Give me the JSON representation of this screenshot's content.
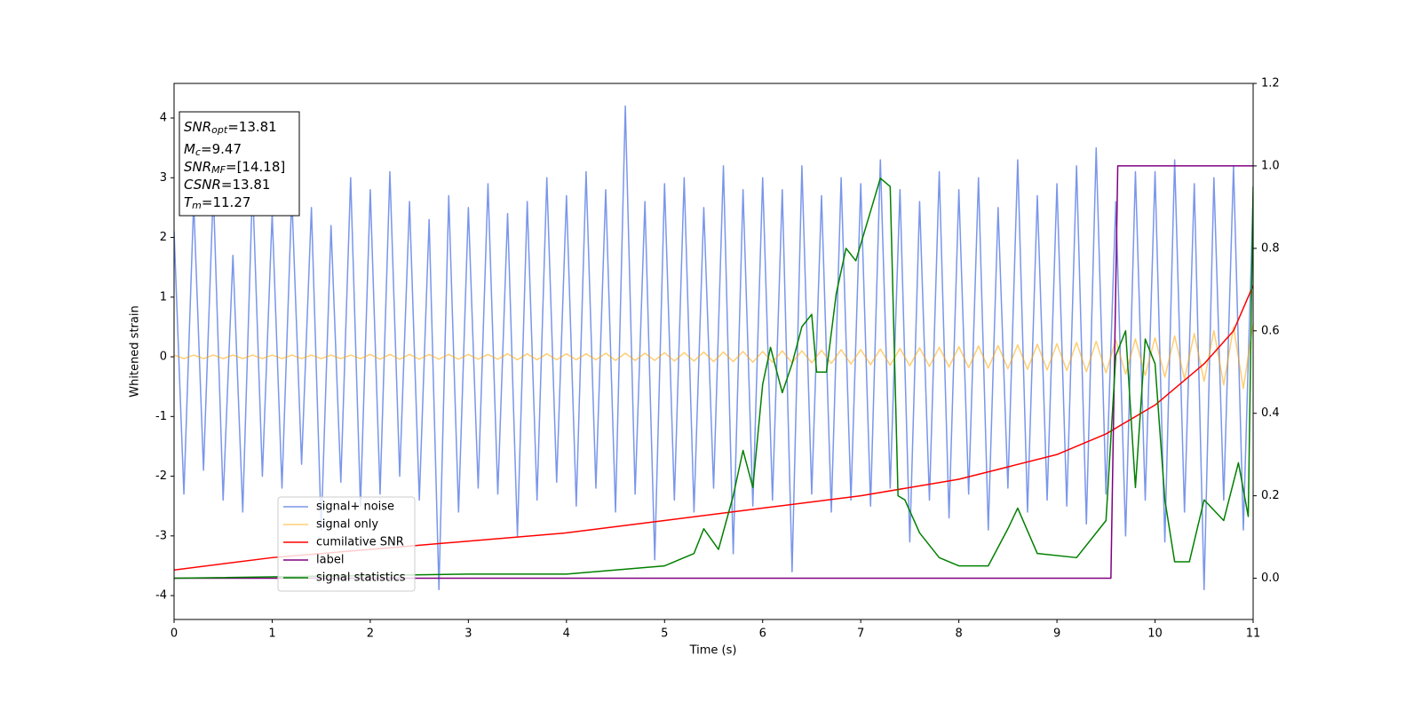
{
  "chart_data": {
    "type": "line",
    "xlabel": "Time (s)",
    "ylabel": "Whitened strain",
    "xlim": [
      0,
      11
    ],
    "ylim": [
      -4.4,
      4.58
    ],
    "y2lim": [
      -0.1,
      1.2
    ],
    "xticks": [
      0,
      1,
      2,
      3,
      4,
      5,
      6,
      7,
      8,
      9,
      10,
      11
    ],
    "yticks": [
      -4,
      -3,
      -2,
      -1,
      0,
      1,
      2,
      3,
      4
    ],
    "y2ticks": [
      {
        "value": 0,
        "label": "0.0"
      },
      0.2,
      0.4,
      0.6,
      0.8,
      {
        "value": 1,
        "label": "1.0"
      },
      1.2
    ],
    "x": [
      0,
      0.1,
      0.2,
      0.3,
      0.4,
      0.5,
      0.6,
      0.7,
      0.8,
      0.9,
      1,
      1.1,
      1.2,
      1.3,
      1.4,
      1.5,
      1.6,
      1.7,
      1.8,
      1.9,
      2,
      2.1,
      2.2,
      2.3,
      2.4,
      2.5,
      2.6,
      2.7,
      2.8,
      2.9,
      3,
      3.1,
      3.2,
      3.3,
      3.4,
      3.5,
      3.6,
      3.7,
      3.8,
      3.9,
      4,
      4.1,
      4.2,
      4.3,
      4.4,
      4.5,
      4.6,
      4.7,
      4.8,
      4.9,
      5,
      5.1,
      5.2,
      5.3,
      5.4,
      5.5,
      5.6,
      5.7,
      5.8,
      5.9,
      6,
      6.1,
      6.2,
      6.3,
      6.4,
      6.5,
      6.6,
      6.7,
      6.8,
      6.9,
      7,
      7.1,
      7.2,
      7.3,
      7.4,
      7.5,
      7.6,
      7.7,
      7.8,
      7.9,
      8,
      8.1,
      8.2,
      8.3,
      8.4,
      8.5,
      8.6,
      8.7,
      8.8,
      8.9,
      9,
      9.1,
      9.2,
      9.3,
      9.4,
      9.5,
      9.6,
      9.7,
      9.8,
      9.9,
      10,
      10.1,
      10.2,
      10.3,
      10.4,
      10.5,
      10.6,
      10.7,
      10.8,
      10.9,
      11
    ],
    "series": [
      {
        "name": "signal+ noise",
        "color": "#4169e1",
        "alpha": 0.7,
        "values": [
          2.1,
          -2.3,
          2.6,
          -1.9,
          2.8,
          -2.4,
          1.7,
          -2.6,
          2.9,
          -2.0,
          2.4,
          -2.2,
          2.7,
          -1.8,
          2.5,
          -2.9,
          2.2,
          -2.1,
          3.0,
          -2.5,
          2.8,
          -2.3,
          3.1,
          -2.0,
          2.6,
          -2.4,
          2.3,
          -3.9,
          2.7,
          -2.6,
          2.5,
          -2.2,
          2.9,
          -2.3,
          2.4,
          -3.0,
          2.6,
          -2.4,
          3.0,
          -2.1,
          2.7,
          -2.5,
          3.1,
          -2.2,
          2.8,
          -2.6,
          4.2,
          -2.3,
          2.6,
          -3.4,
          2.9,
          -2.4,
          3.0,
          -2.6,
          2.5,
          -2.2,
          3.2,
          -3.3,
          2.8,
          -2.5,
          3.0,
          -2.4,
          2.8,
          -3.6,
          3.2,
          -2.3,
          2.7,
          -2.6,
          3.0,
          -2.4,
          2.9,
          -2.5,
          3.3,
          -2.2,
          2.8,
          -3.1,
          2.6,
          -2.4,
          3.1,
          -2.7,
          2.8,
          -2.3,
          3.0,
          -2.9,
          2.5,
          -2.2,
          3.3,
          -2.6,
          2.7,
          -2.4,
          2.9,
          -2.5,
          3.2,
          -2.8,
          3.5,
          -2.3,
          2.6,
          -3.0,
          3.1,
          -2.4,
          3.1,
          -3.1,
          3.3,
          -2.6,
          2.9,
          -3.9,
          3.0,
          -2.4,
          3.2,
          -2.9,
          2.7
        ]
      },
      {
        "name": "signal only",
        "color": "#ffa500",
        "alpha": 0.55,
        "values": [
          0.03,
          -0.03,
          0.03,
          -0.03,
          0.03,
          -0.03,
          0.03,
          -0.03,
          0.03,
          -0.03,
          0.03,
          -0.03,
          0.03,
          -0.03,
          0.03,
          -0.03,
          0.03,
          -0.03,
          0.03,
          -0.03,
          0.04,
          -0.04,
          0.04,
          -0.04,
          0.04,
          -0.04,
          0.04,
          -0.04,
          0.04,
          -0.04,
          0.04,
          -0.04,
          0.04,
          -0.04,
          0.05,
          -0.05,
          0.05,
          -0.05,
          0.05,
          -0.05,
          0.05,
          -0.05,
          0.05,
          -0.05,
          0.06,
          -0.06,
          0.06,
          -0.06,
          0.06,
          -0.06,
          0.07,
          -0.07,
          0.07,
          -0.07,
          0.08,
          -0.08,
          0.08,
          -0.08,
          0.09,
          -0.09,
          0.09,
          -0.09,
          0.1,
          -0.1,
          0.1,
          -0.1,
          0.11,
          -0.11,
          0.12,
          -0.12,
          0.12,
          -0.13,
          0.13,
          -0.14,
          0.14,
          -0.15,
          0.15,
          -0.16,
          0.16,
          -0.17,
          0.17,
          -0.18,
          0.18,
          -0.19,
          0.19,
          -0.2,
          0.2,
          -0.21,
          0.21,
          -0.22,
          0.22,
          -0.23,
          0.24,
          -0.25,
          0.26,
          -0.27,
          0.28,
          -0.29,
          0.3,
          -0.31,
          0.32,
          -0.34,
          0.35,
          -0.37,
          0.39,
          -0.41,
          0.44,
          -0.47,
          0.5,
          -0.53,
          0.56
        ]
      },
      {
        "name": "cumilative SNR",
        "color": "#ff0000",
        "axis": "y2",
        "x": [
          0,
          1,
          2,
          3,
          4,
          5,
          6,
          7,
          8,
          8.5,
          9,
          9.5,
          10,
          10.5,
          10.8,
          11
        ],
        "values": [
          0.02,
          0.05,
          0.07,
          0.09,
          0.11,
          0.14,
          0.17,
          0.2,
          0.24,
          0.27,
          0.3,
          0.35,
          0.42,
          0.52,
          0.6,
          0.71
        ]
      },
      {
        "name": "label",
        "color": "#800080",
        "axis": "y2",
        "x": [
          0,
          9.55,
          9.62,
          11
        ],
        "values": [
          0,
          0,
          1,
          1
        ]
      },
      {
        "name": "signal statistics",
        "color": "#008000",
        "axis": "y2",
        "x": [
          0,
          3,
          4,
          4.5,
          5,
          5.3,
          5.4,
          5.55,
          5.7,
          5.8,
          5.9,
          6,
          6.08,
          6.2,
          6.3,
          6.4,
          6.5,
          6.55,
          6.65,
          6.75,
          6.85,
          6.95,
          7.05,
          7.15,
          7.2,
          7.3,
          7.38,
          7.45,
          7.6,
          7.8,
          8,
          8.3,
          8.5,
          8.6,
          8.8,
          9.2,
          9.5,
          9.6,
          9.7,
          9.8,
          9.9,
          10,
          10.1,
          10.2,
          10.35,
          10.5,
          10.7,
          10.85,
          10.95,
          11
        ],
        "values": [
          0,
          0.01,
          0.01,
          0.02,
          0.03,
          0.06,
          0.12,
          0.07,
          0.2,
          0.31,
          0.22,
          0.47,
          0.56,
          0.45,
          0.52,
          0.61,
          0.64,
          0.5,
          0.5,
          0.69,
          0.8,
          0.77,
          0.85,
          0.93,
          0.97,
          0.95,
          0.2,
          0.19,
          0.11,
          0.05,
          0.03,
          0.03,
          0.12,
          0.17,
          0.06,
          0.05,
          0.14,
          0.54,
          0.6,
          0.22,
          0.58,
          0.52,
          0.19,
          0.04,
          0.04,
          0.19,
          0.14,
          0.28,
          0.15,
          0.95
        ]
      }
    ],
    "annotations": [
      {
        "symbol": "SNR",
        "subscript": "opt",
        "text": "=13.81"
      },
      {
        "symbol": "M",
        "subscript": "c",
        "text": "=9.47"
      },
      {
        "symbol": "SNR",
        "subscript": "MF",
        "text": "=[14.18]"
      },
      {
        "symbol": "CSNR",
        "text": "=13.81"
      },
      {
        "symbol": "T",
        "subscript": "m",
        "text": "=11.27"
      }
    ]
  }
}
